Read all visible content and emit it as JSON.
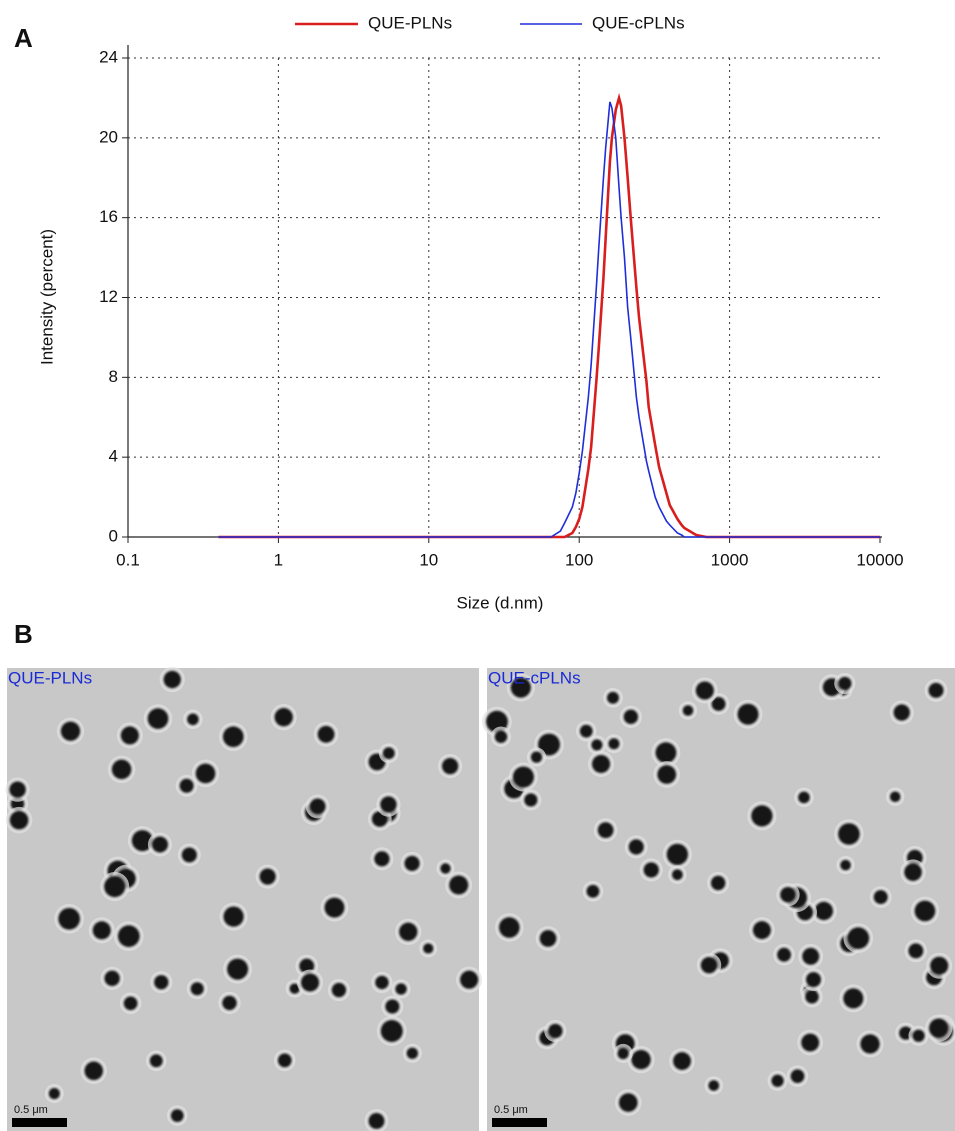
{
  "chart_data": {
    "type": "line",
    "panel_label": "A",
    "x_label": "Size (d.nm)",
    "y_label": "Intensity (percent)",
    "log_x": true,
    "grid": true,
    "legend": "top",
    "xlim": [
      0.1,
      10000
    ],
    "xticks": [
      0.1,
      1,
      10,
      100,
      1000,
      10000
    ],
    "ylim": [
      0,
      24
    ],
    "yticks": [
      0,
      4,
      8,
      12,
      16,
      20,
      24
    ],
    "x": [
      0.4,
      60,
      65,
      75,
      80,
      90,
      95,
      100,
      105,
      115,
      120,
      130,
      135,
      145,
      150,
      160,
      165,
      175,
      184,
      190,
      200,
      210,
      220,
      240,
      250,
      280,
      290,
      320,
      340,
      380,
      400,
      450,
      480,
      500,
      600,
      700,
      10000
    ],
    "series": [
      {
        "name": "QUE-PLNs",
        "color": "#d81e1e",
        "values": [
          0,
          0,
          0,
          0,
          0,
          0.2,
          0.5,
          0.9,
          1.5,
          3.4,
          4.5,
          7.8,
          9.5,
          13,
          15,
          18.8,
          20,
          21.4,
          22,
          21.6,
          20,
          18,
          16,
          12.5,
          11,
          7.8,
          6.5,
          4.6,
          3.5,
          2.2,
          1.6,
          0.9,
          0.6,
          0.45,
          0.1,
          0,
          0
        ]
      },
      {
        "name": "QUE-cPLNs",
        "color": "#1f2ed8",
        "values": [
          0,
          0,
          0,
          0.3,
          0.7,
          1.5,
          2.2,
          3.2,
          4.3,
          7,
          8.6,
          12.5,
          14.5,
          18,
          19.5,
          21.8,
          21.5,
          20,
          17.5,
          16,
          14,
          11.5,
          10,
          7,
          6,
          3.8,
          3.3,
          2,
          1.5,
          0.8,
          0.6,
          0.2,
          0.1,
          0,
          0,
          0,
          0
        ]
      }
    ]
  },
  "panel_b": {
    "label": "B",
    "images": [
      {
        "label": "QUE-PLNs",
        "scale_bar": "0.5 μm"
      },
      {
        "label": "QUE-cPLNs",
        "scale_bar": "0.5 μm"
      }
    ]
  }
}
